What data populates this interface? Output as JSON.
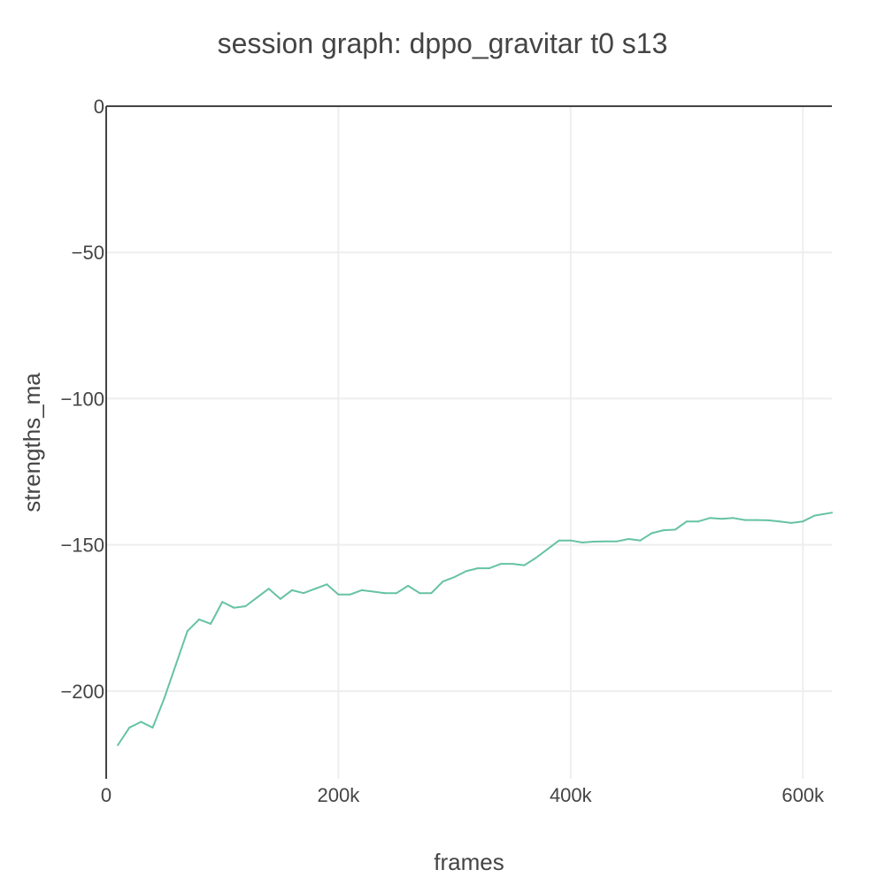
{
  "chart_data": {
    "type": "line",
    "title": "session graph: dppo_gravitar t0 s13",
    "xlabel": "frames",
    "ylabel": "strengths_ma",
    "xlim": [
      0,
      625000
    ],
    "ylim": [
      -230,
      0
    ],
    "x_ticks": [
      0,
      200000,
      400000,
      600000
    ],
    "x_tick_labels": [
      "0",
      "200k",
      "400k",
      "600k"
    ],
    "y_ticks": [
      0,
      -50,
      -100,
      -150,
      -200
    ],
    "y_tick_labels": [
      "0",
      "−50",
      "−100",
      "−150",
      "−200"
    ],
    "grid": true,
    "legend": "none",
    "line_color": "#66c2a5",
    "series": [
      {
        "x": [
          10000,
          20000,
          30000,
          40000,
          50000,
          60000,
          70000,
          80000,
          90000,
          100000,
          110000,
          120000,
          130000,
          140000,
          150000,
          160000,
          170000,
          180000,
          190000,
          200000,
          210000,
          220000,
          230000,
          240000,
          250000,
          260000,
          270000,
          280000,
          290000,
          300000,
          310000,
          320000,
          330000,
          340000,
          350000,
          360000,
          370000,
          380000,
          390000,
          400000,
          410000,
          420000,
          430000,
          440000,
          450000,
          460000,
          470000,
          480000,
          490000,
          500000,
          510000,
          520000,
          530000,
          540000,
          550000,
          560000,
          570000,
          580000,
          590000,
          600000,
          610000,
          625000
        ],
        "values": [
          -218.5,
          -212.5,
          -210.5,
          -212.5,
          -202.5,
          -191,
          -179.5,
          -175.5,
          -177,
          -169.5,
          -171.5,
          -171,
          -168,
          -165,
          -168.5,
          -165.5,
          -166.5,
          -165,
          -163.5,
          -167,
          -167,
          -165.5,
          -166,
          -166.5,
          -166.5,
          -164,
          -166.5,
          -166.5,
          -162.5,
          -161,
          -159,
          -158,
          -158,
          -156.5,
          -156.5,
          -157,
          -154.5,
          -151.5,
          -148.5,
          -148.5,
          -149.2,
          -148.9,
          -148.8,
          -148.8,
          -148,
          -148.5,
          -146,
          -145,
          -144.8,
          -142,
          -142,
          -140.8,
          -141.1,
          -140.8,
          -141.5,
          -141.5,
          -141.6,
          -142,
          -142.5,
          -142,
          -140,
          -139
        ]
      }
    ]
  }
}
